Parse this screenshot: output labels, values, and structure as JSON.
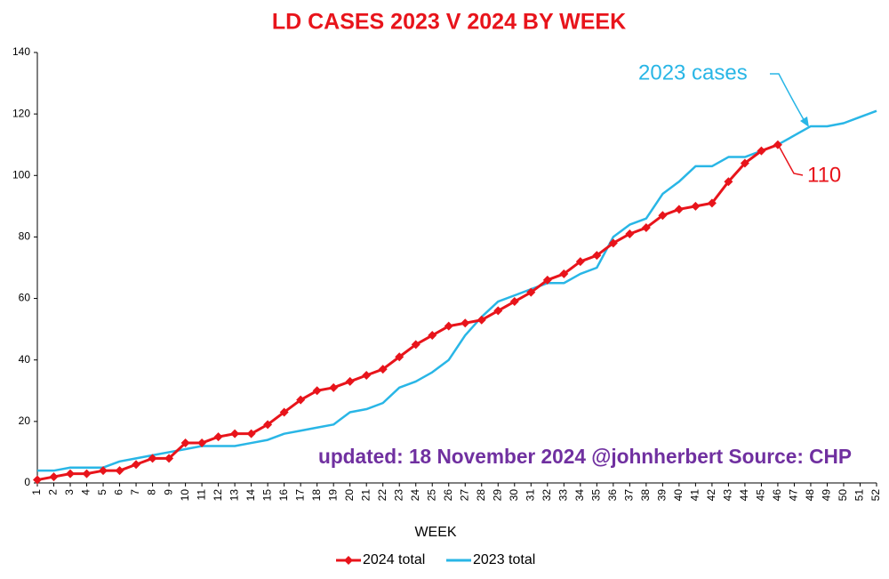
{
  "chart_data": {
    "type": "line",
    "title": "LD CASES 2023 V 2024 BY WEEK",
    "x_label": "WEEK",
    "note": "updated: 18 November 2024  @johnherbert  Source: CHP",
    "categories": [
      "1",
      "2",
      "3",
      "4",
      "5",
      "6",
      "7",
      "8",
      "9",
      "10",
      "11",
      "12",
      "13",
      "14",
      "15",
      "16",
      "17",
      "18",
      "19",
      "20",
      "21",
      "22",
      "23",
      "24",
      "25",
      "26",
      "27",
      "28",
      "29",
      "30",
      "31",
      "32",
      "33",
      "34",
      "35",
      "36",
      "37",
      "38",
      "39",
      "40",
      "41",
      "42",
      "43",
      "44",
      "45",
      "46",
      "47",
      "48",
      "49",
      "50",
      "51",
      "52"
    ],
    "series": [
      {
        "name": "2024 total",
        "color": "#e8141b",
        "marker": "diamond",
        "values": [
          1,
          2,
          3,
          3,
          4,
          4,
          6,
          8,
          8,
          13,
          13,
          15,
          16,
          16,
          19,
          23,
          27,
          30,
          31,
          33,
          35,
          37,
          41,
          45,
          48,
          51,
          52,
          53,
          56,
          59,
          62,
          66,
          68,
          72,
          74,
          78,
          81,
          83,
          87,
          89,
          90,
          91,
          98,
          104,
          108,
          110,
          null,
          null,
          null,
          null,
          null,
          null
        ]
      },
      {
        "name": "2023 total",
        "color": "#29b6e6",
        "marker": "none",
        "values": [
          4,
          4,
          5,
          5,
          5,
          7,
          8,
          9,
          10,
          11,
          12,
          12,
          12,
          13,
          14,
          16,
          17,
          18,
          19,
          23,
          24,
          26,
          31,
          33,
          36,
          40,
          48,
          54,
          59,
          61,
          63,
          65,
          65,
          68,
          70,
          80,
          84,
          86,
          94,
          98,
          103,
          103,
          106,
          106,
          108,
          110,
          113,
          116,
          116,
          117,
          119,
          121
        ]
      }
    ],
    "annotations": [
      "2023  cases",
      "110"
    ],
    "ylim": [
      0,
      140
    ],
    "yticks": [
      0,
      20,
      40,
      60,
      80,
      100,
      120,
      140
    ],
    "grid": false,
    "legend": "bottom"
  }
}
